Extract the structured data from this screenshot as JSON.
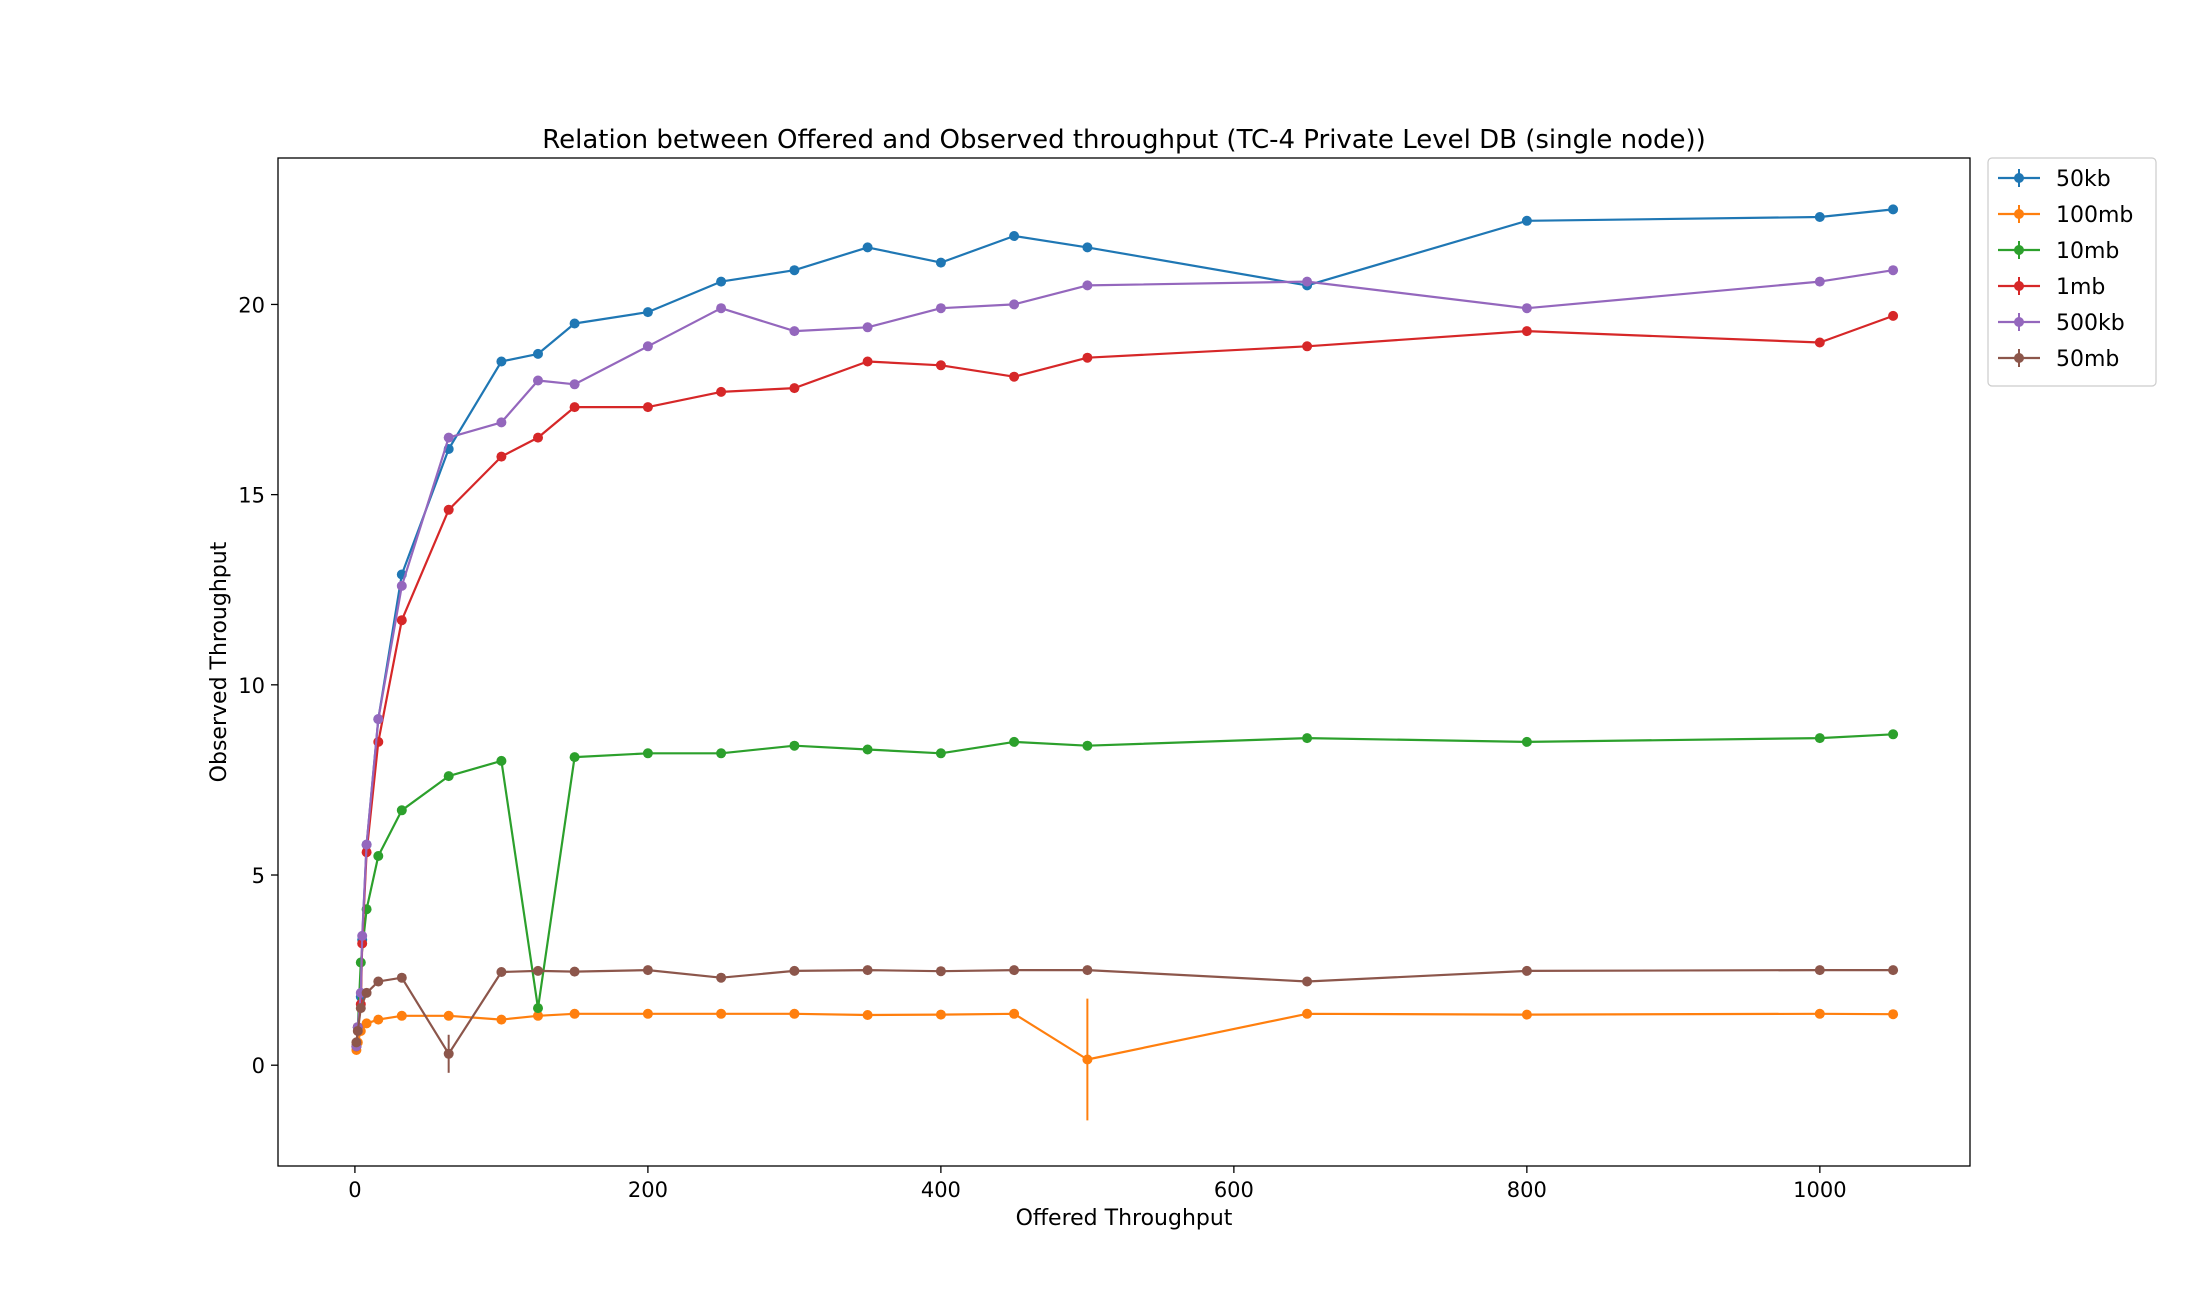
{
  "chart_data": {
    "type": "line",
    "title": "Relation between Offered and Observed throughput (TC-4  Private Level DB (single node))",
    "xlabel": "Offered Throughput",
    "ylabel": "Observed Throughput",
    "xlim": [
      -52.5,
      1102.5
    ],
    "ylim": [
      -2.65,
      23.85
    ],
    "x_ticks": [
      0,
      200,
      400,
      600,
      800,
      1000
    ],
    "y_ticks": [
      0,
      5,
      10,
      15,
      20
    ],
    "grid": false,
    "legend_position": "outside-top-right",
    "error_bars": true,
    "series": [
      {
        "name": "50kb",
        "color": "#1f77b4",
        "points": [
          [
            1,
            0.5
          ],
          [
            2,
            1.0
          ],
          [
            4,
            1.8
          ],
          [
            5,
            3.3
          ],
          [
            8,
            5.8
          ],
          [
            16,
            9.1
          ],
          [
            32,
            12.9
          ],
          [
            64,
            16.2
          ],
          [
            100,
            18.5
          ],
          [
            125,
            18.7
          ],
          [
            150,
            19.5
          ],
          [
            200,
            19.8
          ],
          [
            250,
            20.6
          ],
          [
            300,
            20.9
          ],
          [
            350,
            21.5
          ],
          [
            400,
            21.1
          ],
          [
            450,
            21.8
          ],
          [
            500,
            21.5
          ],
          [
            650,
            20.5
          ],
          [
            800,
            22.2
          ],
          [
            1000,
            22.3
          ],
          [
            1050,
            22.5
          ]
        ]
      },
      {
        "name": "100mb",
        "color": "#ff7f0e",
        "points": [
          [
            1,
            0.4
          ],
          [
            2,
            0.6
          ],
          [
            4,
            0.9
          ],
          [
            8,
            1.1
          ],
          [
            16,
            1.2
          ],
          [
            32,
            1.3
          ],
          [
            64,
            1.3
          ],
          [
            100,
            1.2
          ],
          [
            125,
            1.3
          ],
          [
            150,
            1.35
          ],
          [
            200,
            1.35
          ],
          [
            250,
            1.35
          ],
          [
            300,
            1.35
          ],
          [
            350,
            1.32
          ],
          [
            400,
            1.33
          ],
          [
            450,
            1.35
          ],
          [
            500,
            0.15
          ],
          [
            650,
            1.35
          ],
          [
            800,
            1.33
          ],
          [
            1000,
            1.35
          ],
          [
            1050,
            1.34
          ]
        ],
        "errors": [
          [
            500,
            1.6
          ]
        ]
      },
      {
        "name": "10mb",
        "color": "#2ca02c",
        "points": [
          [
            1,
            0.5
          ],
          [
            2,
            1.0
          ],
          [
            4,
            2.7
          ],
          [
            8,
            4.1
          ],
          [
            16,
            5.5
          ],
          [
            32,
            6.7
          ],
          [
            64,
            7.6
          ],
          [
            100,
            8.0
          ],
          [
            125,
            1.5
          ],
          [
            150,
            8.1
          ],
          [
            200,
            8.2
          ],
          [
            250,
            8.2
          ],
          [
            300,
            8.4
          ],
          [
            350,
            8.3
          ],
          [
            400,
            8.2
          ],
          [
            450,
            8.5
          ],
          [
            500,
            8.4
          ],
          [
            650,
            8.6
          ],
          [
            800,
            8.5
          ],
          [
            1000,
            8.6
          ],
          [
            1050,
            8.7
          ]
        ]
      },
      {
        "name": "1mb",
        "color": "#d62728",
        "points": [
          [
            1,
            0.5
          ],
          [
            2,
            1.0
          ],
          [
            4,
            1.6
          ],
          [
            5,
            3.2
          ],
          [
            8,
            5.6
          ],
          [
            16,
            8.5
          ],
          [
            32,
            11.7
          ],
          [
            64,
            14.6
          ],
          [
            100,
            16.0
          ],
          [
            125,
            16.5
          ],
          [
            150,
            17.3
          ],
          [
            200,
            17.3
          ],
          [
            250,
            17.7
          ],
          [
            300,
            17.8
          ],
          [
            350,
            18.5
          ],
          [
            400,
            18.4
          ],
          [
            450,
            18.1
          ],
          [
            500,
            18.6
          ],
          [
            650,
            18.9
          ],
          [
            800,
            19.3
          ],
          [
            1000,
            19.0
          ],
          [
            1050,
            19.7
          ]
        ]
      },
      {
        "name": "500kb",
        "color": "#9467bd",
        "points": [
          [
            1,
            0.5
          ],
          [
            2,
            1.0
          ],
          [
            4,
            1.9
          ],
          [
            5,
            3.4
          ],
          [
            8,
            5.8
          ],
          [
            16,
            9.1
          ],
          [
            32,
            12.6
          ],
          [
            64,
            16.5
          ],
          [
            100,
            16.9
          ],
          [
            125,
            18.0
          ],
          [
            150,
            17.9
          ],
          [
            200,
            18.9
          ],
          [
            250,
            19.9
          ],
          [
            300,
            19.3
          ],
          [
            350,
            19.4
          ],
          [
            400,
            19.9
          ],
          [
            450,
            20.0
          ],
          [
            500,
            20.5
          ],
          [
            650,
            20.6
          ],
          [
            800,
            19.9
          ],
          [
            1000,
            20.6
          ],
          [
            1050,
            20.9
          ]
        ]
      },
      {
        "name": "50mb",
        "color": "#8c564b",
        "points": [
          [
            1,
            0.6
          ],
          [
            2,
            0.9
          ],
          [
            4,
            1.5
          ],
          [
            8,
            1.9
          ],
          [
            16,
            2.2
          ],
          [
            32,
            2.3
          ],
          [
            64,
            0.3
          ],
          [
            100,
            2.45
          ],
          [
            125,
            2.48
          ],
          [
            150,
            2.46
          ],
          [
            200,
            2.5
          ],
          [
            250,
            2.3
          ],
          [
            300,
            2.48
          ],
          [
            350,
            2.5
          ],
          [
            400,
            2.47
          ],
          [
            450,
            2.5
          ],
          [
            500,
            2.5
          ],
          [
            650,
            2.2
          ],
          [
            800,
            2.48
          ],
          [
            1000,
            2.5
          ],
          [
            1050,
            2.5
          ]
        ],
        "errors": [
          [
            64,
            0.5
          ]
        ]
      }
    ]
  }
}
